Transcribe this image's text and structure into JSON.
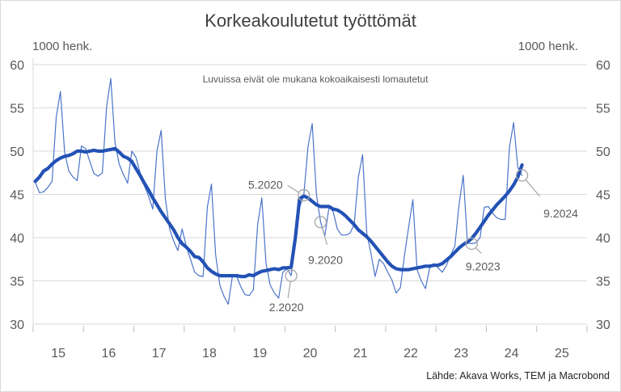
{
  "chart_data": {
    "type": "line",
    "title": "Korkeakoulutetut työttömät",
    "ylabel_left": "1000 henk.",
    "ylabel_right": "1000 henk.",
    "note": "Luvuissa eivät ole mukana kokoaikaisesti lomautetut",
    "source": "Lähde: Akava Works, TEM ja Macrobond",
    "ylim": [
      30,
      60
    ],
    "yticks": [
      30,
      35,
      40,
      45,
      50,
      55,
      60
    ],
    "xlim": [
      2015,
      2026
    ],
    "xtick_labels": [
      "15",
      "16",
      "17",
      "18",
      "19",
      "20",
      "21",
      "22",
      "23",
      "24",
      "25"
    ],
    "grid": "horizontal",
    "frequency": "monthly",
    "start": "1.2015",
    "colors": {
      "raw": "#4a74c9",
      "trend": "#2352b5",
      "annotation": "#a6a6a6",
      "grid": "#d9d9d9",
      "text": "#595959"
    },
    "series": [
      {
        "id": "raw",
        "values": [
          46.4,
          45.2,
          45.3,
          45.8,
          46.5,
          53.9,
          56.9,
          49.9,
          47.7,
          47.0,
          46.6,
          50.6,
          50.3,
          48.8,
          47.4,
          47.1,
          47.5,
          55.1,
          58.4,
          51.0,
          48.5,
          47.3,
          46.3,
          50.0,
          49.3,
          47.5,
          46.0,
          44.8,
          43.3,
          50.0,
          52.4,
          44.5,
          41.0,
          39.6,
          38.5,
          41.0,
          39.0,
          37.5,
          36.0,
          35.6,
          35.5,
          43.5,
          46.2,
          38.0,
          34.5,
          33.2,
          32.3,
          35.6,
          35.5,
          34.3,
          33.4,
          33.3,
          34.0,
          41.5,
          44.6,
          37.0,
          34.5,
          33.6,
          33.0,
          36.0,
          36.4,
          35.6,
          40.0,
          43.5,
          44.9,
          50.5,
          53.2,
          45.0,
          41.8,
          40.2,
          43.5,
          43.0,
          41.0,
          40.3,
          40.3,
          40.5,
          41.5,
          47.0,
          49.6,
          40.5,
          38.2,
          35.5,
          37.5,
          37.0,
          36.0,
          35.1,
          33.6,
          34.2,
          38.0,
          41.3,
          44.4,
          36.3,
          35.0,
          34.1,
          36.5,
          37.0,
          36.5,
          36.0,
          36.8,
          38.0,
          39.0,
          43.8,
          47.2,
          39.4,
          39.3,
          39.4,
          40.0,
          43.5,
          43.6,
          42.8,
          42.3,
          42.1,
          42.1,
          50.4,
          53.3,
          48.1,
          47.2
        ]
      },
      {
        "id": "trend",
        "values": [
          46.5,
          47.0,
          47.7,
          48.0,
          48.5,
          48.9,
          49.2,
          49.4,
          49.5,
          49.7,
          50.0,
          50.0,
          49.9,
          50.0,
          50.1,
          50.0,
          50.0,
          50.1,
          50.2,
          50.3,
          49.9,
          49.4,
          49.2,
          48.8,
          48.0,
          47.2,
          46.3,
          45.5,
          44.6,
          43.8,
          43.0,
          42.3,
          41.6,
          40.9,
          40.0,
          39.3,
          38.9,
          38.4,
          37.8,
          37.7,
          37.2,
          36.5,
          36.1,
          35.8,
          35.6,
          35.6,
          35.6,
          35.6,
          35.6,
          35.5,
          35.5,
          35.7,
          35.6,
          35.9,
          36.1,
          36.2,
          36.3,
          36.4,
          36.3,
          36.5,
          36.5,
          36.6,
          40.0,
          44.5,
          44.8,
          44.6,
          44.2,
          43.8,
          43.6,
          43.6,
          43.6,
          43.3,
          43.2,
          42.9,
          42.5,
          42.0,
          41.5,
          40.9,
          40.5,
          40.1,
          39.6,
          39.0,
          38.4,
          37.8,
          37.2,
          36.7,
          36.4,
          36.3,
          36.3,
          36.3,
          36.4,
          36.5,
          36.6,
          36.7,
          36.7,
          36.8,
          36.8,
          37.0,
          37.4,
          37.8,
          38.3,
          38.8,
          39.2,
          39.5,
          39.9,
          40.5,
          41.2,
          41.9,
          42.6,
          43.2,
          43.8,
          44.3,
          44.8,
          45.4,
          46.1,
          47.0,
          48.4
        ]
      }
    ],
    "annotations": [
      {
        "label": "2.2020",
        "year": 2020,
        "month": 2
      },
      {
        "label": "5.2020",
        "year": 2020,
        "month": 5
      },
      {
        "label": "9.2020",
        "year": 2020,
        "month": 9
      },
      {
        "label": "9.2023",
        "year": 2023,
        "month": 9
      },
      {
        "label": "9.2024",
        "year": 2024,
        "month": 9
      }
    ]
  }
}
